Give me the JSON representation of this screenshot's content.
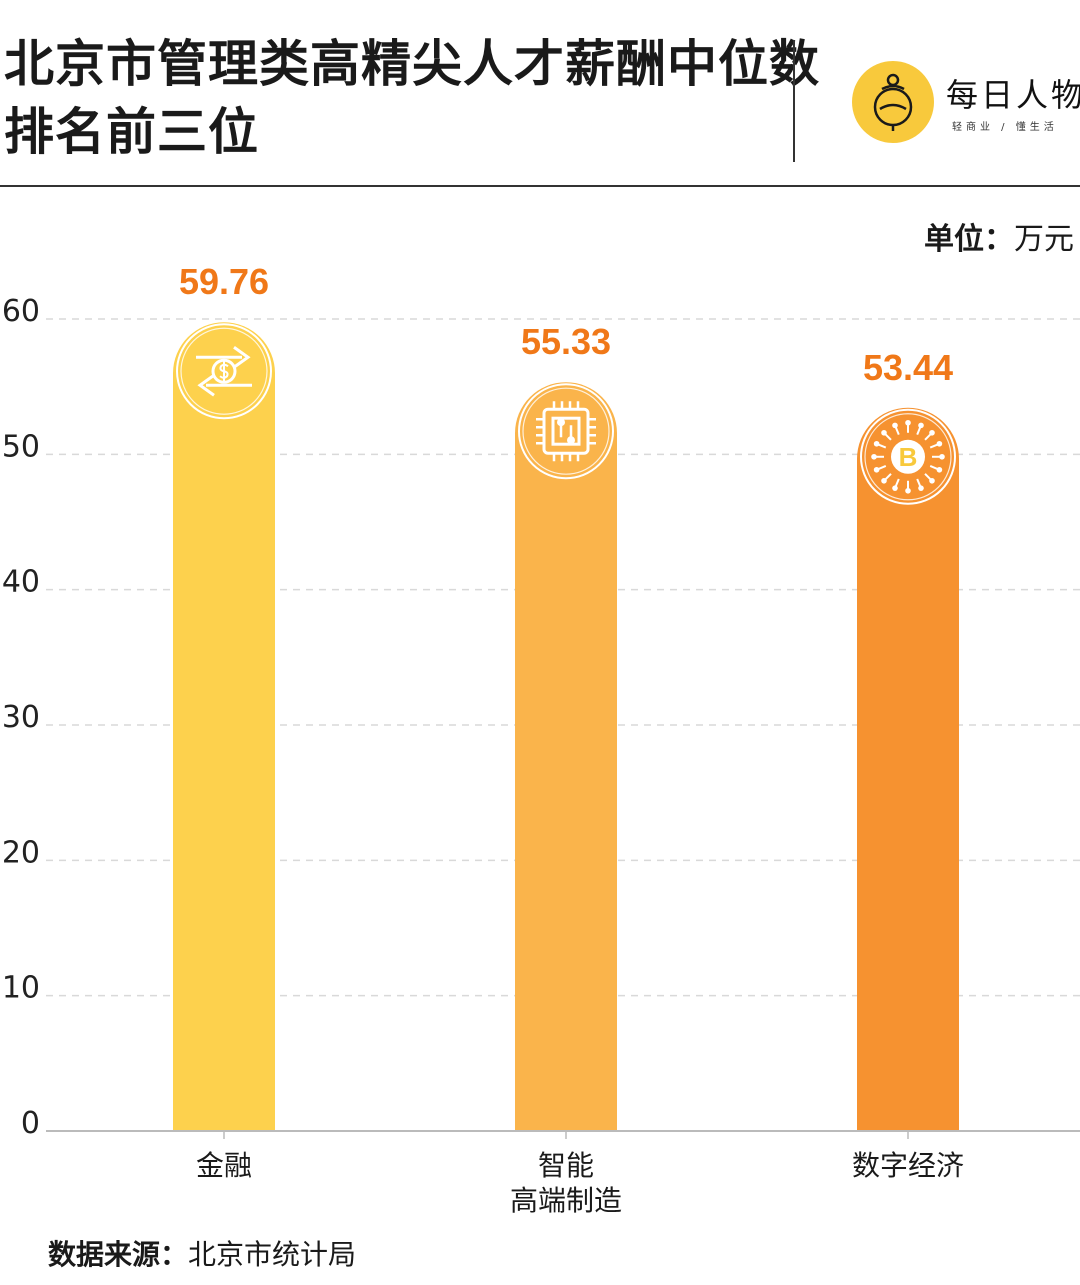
{
  "header": {
    "title_line1": "北京市管理类高精尖人才薪酬中位数",
    "title_line2": "排名前三位",
    "logo_name": "每日人物",
    "logo_slogan": "轻商业 / 懂生活"
  },
  "unit_label": "单位：",
  "unit_value": "万元",
  "source_label": "数据来源：",
  "source_value": "北京市统计局",
  "colors": {
    "label_orange": "#f07818",
    "grid": "#d9d9d9",
    "axis": "#bbbbbb",
    "logo_yellow": "#f8c93c"
  },
  "chart_data": {
    "type": "bar",
    "categories": [
      {
        "lines": [
          "金融"
        ],
        "icon": "currency-exchange-icon",
        "color": "#fdd14d"
      },
      {
        "lines": [
          "智能",
          "高端制造"
        ],
        "icon": "microchip-icon",
        "color": "#fab44b"
      },
      {
        "lines": [
          "数字经济"
        ],
        "icon": "bitcoin-icon",
        "color": "#f69230"
      }
    ],
    "values": [
      59.76,
      55.33,
      53.44
    ],
    "value_labels": [
      "59.76",
      "55.33",
      "53.44"
    ],
    "ylim": [
      0,
      60
    ],
    "yticks": [
      0,
      10,
      20,
      30,
      40,
      50,
      60
    ],
    "grid": true,
    "legend": "none"
  }
}
